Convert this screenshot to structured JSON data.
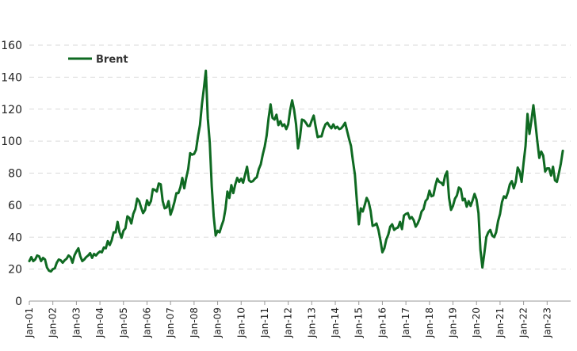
{
  "chart_data": {
    "type": "line",
    "title": "",
    "xlabel": "",
    "ylabel": "",
    "ylim": [
      0,
      160
    ],
    "yticks": [
      0,
      20,
      40,
      60,
      80,
      100,
      120,
      140,
      160
    ],
    "x_tick_labels": [
      "Jan-01",
      "Jan-02",
      "Jan-03",
      "Jan-04",
      "Jan-05",
      "Jan-06",
      "Jan-07",
      "Jan-08",
      "Jan-09",
      "Jan-10",
      "Jan-11",
      "Jan-12",
      "Jan-13",
      "Jan-14",
      "Jan-15",
      "Jan-16",
      "Jan-17",
      "Jan-18",
      "Jan-19",
      "Jan-20",
      "Jan-21",
      "Jan-22",
      "Jan-23"
    ],
    "grid": "horizontal dashed",
    "legend_position": "top-left",
    "colors": {
      "line": "#0f6a22",
      "grid": "#d9d9d9",
      "axis": "#9a9a9a"
    },
    "series": [
      {
        "name": "Brent",
        "points": [
          [
            "2001-01",
            25
          ],
          [
            "2001-02",
            27.5
          ],
          [
            "2001-03",
            25
          ],
          [
            "2001-04",
            26
          ],
          [
            "2001-05",
            28.5
          ],
          [
            "2001-06",
            28
          ],
          [
            "2001-07",
            25
          ],
          [
            "2001-08",
            27
          ],
          [
            "2001-09",
            26
          ],
          [
            "2001-10",
            21
          ],
          [
            "2001-11",
            19
          ],
          [
            "2001-12",
            18.5
          ],
          [
            "2002-01",
            20
          ],
          [
            "2002-02",
            20.5
          ],
          [
            "2002-03",
            24
          ],
          [
            "2002-04",
            26
          ],
          [
            "2002-05",
            25.5
          ],
          [
            "2002-06",
            24
          ],
          [
            "2002-07",
            25.5
          ],
          [
            "2002-08",
            26.5
          ],
          [
            "2002-09",
            28.5
          ],
          [
            "2002-10",
            27.5
          ],
          [
            "2002-11",
            24
          ],
          [
            "2002-12",
            28.5
          ],
          [
            "2003-01",
            31
          ],
          [
            "2003-02",
            33
          ],
          [
            "2003-03",
            28
          ],
          [
            "2003-04",
            25
          ],
          [
            "2003-05",
            26
          ],
          [
            "2003-06",
            27.5
          ],
          [
            "2003-07",
            28.5
          ],
          [
            "2003-08",
            30
          ],
          [
            "2003-09",
            27
          ],
          [
            "2003-10",
            29.5
          ],
          [
            "2003-11",
            28.5
          ],
          [
            "2003-12",
            30
          ],
          [
            "2004-01",
            31
          ],
          [
            "2004-02",
            30.5
          ],
          [
            "2004-03",
            33.5
          ],
          [
            "2004-04",
            33
          ],
          [
            "2004-05",
            37.5
          ],
          [
            "2004-06",
            35
          ],
          [
            "2004-07",
            38
          ],
          [
            "2004-08",
            43
          ],
          [
            "2004-09",
            43
          ],
          [
            "2004-10",
            49.5
          ],
          [
            "2004-11",
            43
          ],
          [
            "2004-12",
            39.5
          ],
          [
            "2005-01",
            44
          ],
          [
            "2005-02",
            45.5
          ],
          [
            "2005-03",
            53
          ],
          [
            "2005-04",
            52
          ],
          [
            "2005-05",
            48.5
          ],
          [
            "2005-06",
            54.5
          ],
          [
            "2005-07",
            57.5
          ],
          [
            "2005-08",
            64
          ],
          [
            "2005-09",
            62.5
          ],
          [
            "2005-10",
            58.5
          ],
          [
            "2005-11",
            55
          ],
          [
            "2005-12",
            57
          ],
          [
            "2006-01",
            63
          ],
          [
            "2006-02",
            60
          ],
          [
            "2006-03",
            62.5
          ],
          [
            "2006-04",
            70
          ],
          [
            "2006-05",
            69.5
          ],
          [
            "2006-06",
            68.5
          ],
          [
            "2006-07",
            73.5
          ],
          [
            "2006-08",
            73
          ],
          [
            "2006-09",
            62.5
          ],
          [
            "2006-10",
            58
          ],
          [
            "2006-11",
            58.5
          ],
          [
            "2006-12",
            62.5
          ],
          [
            "2007-01",
            54
          ],
          [
            "2007-02",
            57.5
          ],
          [
            "2007-03",
            62
          ],
          [
            "2007-04",
            67.5
          ],
          [
            "2007-05",
            67.5
          ],
          [
            "2007-06",
            71
          ],
          [
            "2007-07",
            77
          ],
          [
            "2007-08",
            70.5
          ],
          [
            "2007-09",
            77
          ],
          [
            "2007-10",
            82.5
          ],
          [
            "2007-11",
            92.5
          ],
          [
            "2007-12",
            91.5
          ],
          [
            "2008-01",
            92
          ],
          [
            "2008-02",
            94.5
          ],
          [
            "2008-03",
            103
          ],
          [
            "2008-04",
            110
          ],
          [
            "2008-05",
            123
          ],
          [
            "2008-06",
            133
          ],
          [
            "2008-07",
            144
          ],
          [
            "2008-08",
            114
          ],
          [
            "2008-09",
            99
          ],
          [
            "2008-10",
            72
          ],
          [
            "2008-11",
            53
          ],
          [
            "2008-12",
            41
          ],
          [
            "2009-01",
            44
          ],
          [
            "2009-02",
            43
          ],
          [
            "2009-03",
            47
          ],
          [
            "2009-04",
            50.5
          ],
          [
            "2009-05",
            57.5
          ],
          [
            "2009-06",
            68.5
          ],
          [
            "2009-07",
            64.5
          ],
          [
            "2009-08",
            72.5
          ],
          [
            "2009-09",
            67.5
          ],
          [
            "2009-10",
            73
          ],
          [
            "2009-11",
            77
          ],
          [
            "2009-12",
            74.5
          ],
          [
            "2010-01",
            76.5
          ],
          [
            "2010-02",
            74
          ],
          [
            "2010-03",
            79
          ],
          [
            "2010-04",
            84
          ],
          [
            "2010-05",
            75.5
          ],
          [
            "2010-06",
            74.5
          ],
          [
            "2010-07",
            75
          ],
          [
            "2010-08",
            76.5
          ],
          [
            "2010-09",
            77.5
          ],
          [
            "2010-10",
            82.5
          ],
          [
            "2010-11",
            85.5
          ],
          [
            "2010-12",
            91.5
          ],
          [
            "2011-01",
            96.5
          ],
          [
            "2011-02",
            103.5
          ],
          [
            "2011-03",
            114.5
          ],
          [
            "2011-04",
            123
          ],
          [
            "2011-05",
            114.5
          ],
          [
            "2011-06",
            113.5
          ],
          [
            "2011-07",
            116.5
          ],
          [
            "2011-08",
            110
          ],
          [
            "2011-09",
            112.5
          ],
          [
            "2011-10",
            109.5
          ],
          [
            "2011-11",
            110.5
          ],
          [
            "2011-12",
            107.5
          ],
          [
            "2012-01",
            110.5
          ],
          [
            "2012-02",
            119.5
          ],
          [
            "2012-03",
            125.5
          ],
          [
            "2012-04",
            119.5
          ],
          [
            "2012-05",
            110.5
          ],
          [
            "2012-06",
            95.5
          ],
          [
            "2012-07",
            102.5
          ],
          [
            "2012-08",
            113.5
          ],
          [
            "2012-09",
            113
          ],
          [
            "2012-10",
            111.5
          ],
          [
            "2012-11",
            109.5
          ],
          [
            "2012-12",
            109.5
          ],
          [
            "2013-01",
            113
          ],
          [
            "2013-02",
            116
          ],
          [
            "2013-03",
            109
          ],
          [
            "2013-04",
            102.5
          ],
          [
            "2013-05",
            103
          ],
          [
            "2013-06",
            103
          ],
          [
            "2013-07",
            107.5
          ],
          [
            "2013-08",
            110.5
          ],
          [
            "2013-09",
            111.5
          ],
          [
            "2013-10",
            109.5
          ],
          [
            "2013-11",
            108
          ],
          [
            "2013-12",
            110.5
          ],
          [
            "2014-01",
            108
          ],
          [
            "2014-02",
            109
          ],
          [
            "2014-03",
            107.5
          ],
          [
            "2014-04",
            108
          ],
          [
            "2014-05",
            109.5
          ],
          [
            "2014-06",
            111.5
          ],
          [
            "2014-07",
            106.5
          ],
          [
            "2014-08",
            101.5
          ],
          [
            "2014-09",
            97
          ],
          [
            "2014-10",
            87.5
          ],
          [
            "2014-11",
            79
          ],
          [
            "2014-12",
            62.5
          ],
          [
            "2015-01",
            48
          ],
          [
            "2015-02",
            58
          ],
          [
            "2015-03",
            56
          ],
          [
            "2015-04",
            60
          ],
          [
            "2015-05",
            64.5
          ],
          [
            "2015-06",
            62
          ],
          [
            "2015-07",
            56.5
          ],
          [
            "2015-08",
            47
          ],
          [
            "2015-09",
            47.5
          ],
          [
            "2015-10",
            48.5
          ],
          [
            "2015-11",
            44.5
          ],
          [
            "2015-12",
            38
          ],
          [
            "2016-01",
            30.5
          ],
          [
            "2016-02",
            33
          ],
          [
            "2016-03",
            38.5
          ],
          [
            "2016-04",
            41.5
          ],
          [
            "2016-05",
            46.5
          ],
          [
            "2016-06",
            48
          ],
          [
            "2016-07",
            44.5
          ],
          [
            "2016-08",
            45.5
          ],
          [
            "2016-09",
            46
          ],
          [
            "2016-10",
            49.5
          ],
          [
            "2016-11",
            45
          ],
          [
            "2016-12",
            53.5
          ],
          [
            "2017-01",
            54.5
          ],
          [
            "2017-02",
            55
          ],
          [
            "2017-03",
            51.5
          ],
          [
            "2017-04",
            52.5
          ],
          [
            "2017-05",
            50.5
          ],
          [
            "2017-06",
            46.5
          ],
          [
            "2017-07",
            48.5
          ],
          [
            "2017-08",
            51.5
          ],
          [
            "2017-09",
            56
          ],
          [
            "2017-10",
            57.5
          ],
          [
            "2017-11",
            62.5
          ],
          [
            "2017-12",
            64
          ],
          [
            "2018-01",
            69
          ],
          [
            "2018-02",
            65.5
          ],
          [
            "2018-03",
            66
          ],
          [
            "2018-04",
            72
          ],
          [
            "2018-05",
            76.5
          ],
          [
            "2018-06",
            74.5
          ],
          [
            "2018-07",
            74
          ],
          [
            "2018-08",
            72.5
          ],
          [
            "2018-09",
            78.5
          ],
          [
            "2018-10",
            81
          ],
          [
            "2018-11",
            64.5
          ],
          [
            "2018-12",
            57
          ],
          [
            "2019-01",
            59.5
          ],
          [
            "2019-02",
            64
          ],
          [
            "2019-03",
            66
          ],
          [
            "2019-04",
            71
          ],
          [
            "2019-05",
            70
          ],
          [
            "2019-06",
            63
          ],
          [
            "2019-07",
            64
          ],
          [
            "2019-08",
            59
          ],
          [
            "2019-09",
            62.5
          ],
          [
            "2019-10",
            59.5
          ],
          [
            "2019-11",
            63
          ],
          [
            "2019-12",
            67
          ],
          [
            "2020-01",
            63.5
          ],
          [
            "2020-02",
            55
          ],
          [
            "2020-03",
            32
          ],
          [
            "2020-04",
            21
          ],
          [
            "2020-05",
            30
          ],
          [
            "2020-06",
            40
          ],
          [
            "2020-07",
            43
          ],
          [
            "2020-08",
            44.5
          ],
          [
            "2020-09",
            41
          ],
          [
            "2020-10",
            40
          ],
          [
            "2020-11",
            43
          ],
          [
            "2020-12",
            50
          ],
          [
            "2021-01",
            54.5
          ],
          [
            "2021-02",
            62
          ],
          [
            "2021-03",
            65.5
          ],
          [
            "2021-04",
            64.5
          ],
          [
            "2021-05",
            68
          ],
          [
            "2021-06",
            73
          ],
          [
            "2021-07",
            75
          ],
          [
            "2021-08",
            70.5
          ],
          [
            "2021-09",
            74.5
          ],
          [
            "2021-10",
            83.5
          ],
          [
            "2021-11",
            81
          ],
          [
            "2021-12",
            74.5
          ],
          [
            "2022-01",
            86.5
          ],
          [
            "2022-02",
            97
          ],
          [
            "2022-03",
            117
          ],
          [
            "2022-04",
            104.5
          ],
          [
            "2022-05",
            113
          ],
          [
            "2022-06",
            122.5
          ],
          [
            "2022-07",
            111.5
          ],
          [
            "2022-08",
            100
          ],
          [
            "2022-09",
            89.5
          ],
          [
            "2022-10",
            93.5
          ],
          [
            "2022-11",
            91
          ],
          [
            "2022-12",
            81
          ],
          [
            "2023-01",
            83
          ],
          [
            "2023-02",
            83
          ],
          [
            "2023-03",
            78.5
          ],
          [
            "2023-04",
            84
          ],
          [
            "2023-05",
            75.5
          ],
          [
            "2023-06",
            74.5
          ],
          [
            "2023-07",
            80
          ],
          [
            "2023-08",
            86
          ],
          [
            "2023-09",
            94
          ]
        ]
      }
    ]
  }
}
